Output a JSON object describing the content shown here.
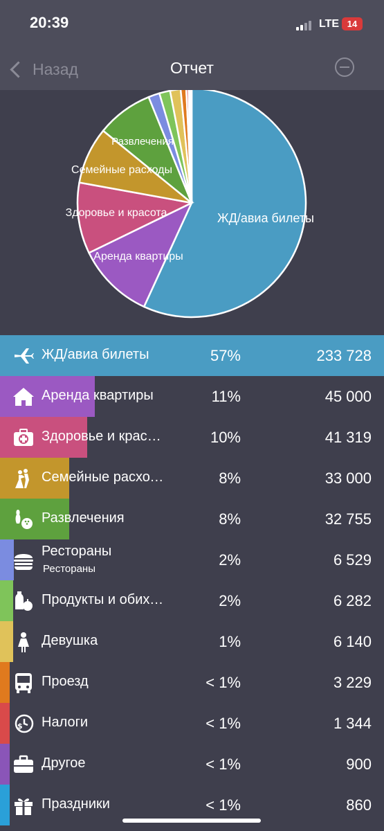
{
  "status_bar": {
    "time": "20:39",
    "network": "LTE",
    "battery": "14",
    "battery_color": "#d93a3a"
  },
  "nav": {
    "back_label": "Назад",
    "title": "Отчет",
    "right_icon": "minus-circle-icon"
  },
  "pie_chart": {
    "labels": [
      "ЖД/авиа билеты",
      "Аренда  квартиры",
      "Здоровье и красота",
      "Семейные расходы",
      "Развлечения"
    ]
  },
  "categories": [
    {
      "name": "ЖД/авиа билеты",
      "subtitle": "",
      "percent": "57%",
      "amount": "233 728",
      "value": 233728,
      "color": "#4a9cc3",
      "icon": "airplane-icon"
    },
    {
      "name": "Аренда  квартиры",
      "subtitle": "",
      "percent": "11%",
      "amount": "45 000",
      "value": 45000,
      "color": "#9b59c2",
      "icon": "house-icon"
    },
    {
      "name": "Здоровье и красота",
      "subtitle": "",
      "percent": "10%",
      "amount": "41 319",
      "value": 41319,
      "color": "#c9507e",
      "icon": "first-aid-kit-icon"
    },
    {
      "name": "Семейные расходы",
      "subtitle": "",
      "percent": "8%",
      "amount": "33 000",
      "value": 33000,
      "color": "#c3962c",
      "icon": "dancing-couple-icon"
    },
    {
      "name": "Развлечения",
      "subtitle": "",
      "percent": "8%",
      "amount": "32 755",
      "value": 32755,
      "color": "#5ea13e",
      "icon": "bowling-icon"
    },
    {
      "name": "Рестораны",
      "subtitle": "Рестораны",
      "percent": "2%",
      "amount": "6 529",
      "value": 6529,
      "color": "#7b8ce0",
      "icon": "burger-icon"
    },
    {
      "name": "Продукты и обиход",
      "subtitle": "",
      "percent": "2%",
      "amount": "6 282",
      "value": 6282,
      "color": "#7fc45a",
      "icon": "groceries-icon"
    },
    {
      "name": "Девушка",
      "subtitle": "",
      "percent": "1%",
      "amount": "6 140",
      "value": 6140,
      "color": "#e0c25a",
      "icon": "girl-icon"
    },
    {
      "name": "Проезд",
      "subtitle": "",
      "percent": "< 1%",
      "amount": "3 229",
      "value": 3229,
      "color": "#e07a1e",
      "icon": "bus-icon"
    },
    {
      "name": "Налоги",
      "subtitle": "",
      "percent": "< 1%",
      "amount": "1 344",
      "value": 1344,
      "color": "#d94a4a",
      "icon": "tax-clock-icon"
    },
    {
      "name": "Другое",
      "subtitle": "",
      "percent": "< 1%",
      "amount": "900",
      "value": 900,
      "color": "#8a55b8",
      "icon": "briefcase-icon"
    },
    {
      "name": "Праздники",
      "subtitle": "",
      "percent": "< 1%",
      "amount": "860",
      "value": 860,
      "color": "#2aa0d8",
      "icon": "gift-icon"
    }
  ]
}
